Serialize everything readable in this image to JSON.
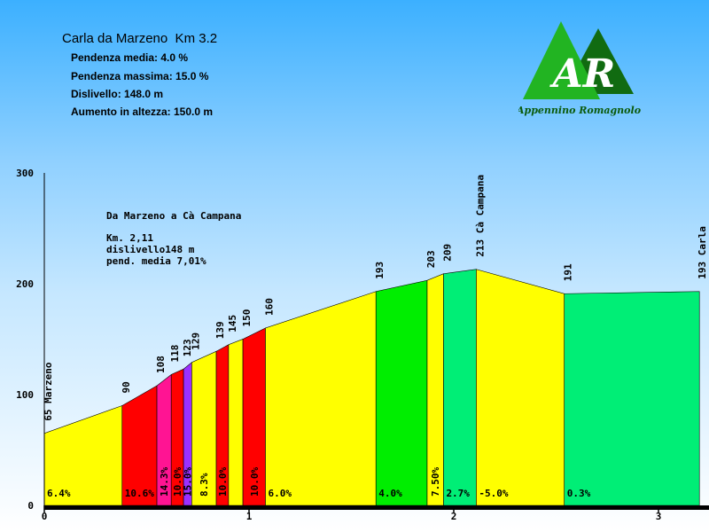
{
  "header": {
    "title": "Carla da Marzeno  Km 3.2",
    "stats": [
      "Pendenza media: 4.0 %",
      "Pendenza massima: 15.0 %",
      "Dislivello: 148.0 m",
      "Aumento in altezza: 150.0 m"
    ]
  },
  "logo": {
    "letters": "AR",
    "caption": "Appennino Romagnolo"
  },
  "note": {
    "title": "Da Marzeno a Cà Campana",
    "lines": [
      "Km. 2,11",
      "dislivello148 m",
      "pend. media 7,01%"
    ]
  },
  "chart_data": {
    "type": "area",
    "title": "Carla da Marzeno  Km 3.2",
    "xlabel": "",
    "ylabel": "",
    "xlim": [
      0,
      3.26
    ],
    "ylim": [
      0,
      300
    ],
    "x_ticks": [
      0,
      1,
      2,
      3
    ],
    "y_ticks": [
      0,
      100,
      200,
      300
    ],
    "grid": false,
    "points": [
      {
        "x": 0.0,
        "y": 65,
        "label": "65 Marzeno"
      },
      {
        "x": 0.38,
        "y": 90,
        "label": "90"
      },
      {
        "x": 0.55,
        "y": 108,
        "label": "108"
      },
      {
        "x": 0.62,
        "y": 118,
        "label": "118"
      },
      {
        "x": 0.68,
        "y": 123,
        "label": "123"
      },
      {
        "x": 0.72,
        "y": 129,
        "label": "129"
      },
      {
        "x": 0.84,
        "y": 139,
        "label": "139"
      },
      {
        "x": 0.9,
        "y": 145,
        "label": "145"
      },
      {
        "x": 0.97,
        "y": 150,
        "label": "150"
      },
      {
        "x": 1.08,
        "y": 160,
        "label": "160"
      },
      {
        "x": 1.62,
        "y": 193,
        "label": "193"
      },
      {
        "x": 1.87,
        "y": 203,
        "label": "203"
      },
      {
        "x": 1.95,
        "y": 209,
        "label": "209"
      },
      {
        "x": 2.11,
        "y": 213,
        "label": "213 Cà Campana"
      },
      {
        "x": 2.54,
        "y": 191,
        "label": "191"
      },
      {
        "x": 3.2,
        "y": 193,
        "label": "193 Carla"
      }
    ],
    "segments": [
      {
        "grade": "6.4%",
        "color": "#ffff00"
      },
      {
        "grade": "10.6%",
        "color": "#ff0000"
      },
      {
        "grade": "14.3%",
        "color": "#ff1493"
      },
      {
        "grade": "10.0%",
        "color": "#ff0000"
      },
      {
        "grade": "15.0%",
        "color": "#9b30ff"
      },
      {
        "grade": "8.3%",
        "color": "#ffff00"
      },
      {
        "grade": "10.0%",
        "color": "#ff0000"
      },
      {
        "grade": "",
        "color": "#ffff00"
      },
      {
        "grade": "10.0%",
        "color": "#ff0000"
      },
      {
        "grade": "6.0%",
        "color": "#ffff00"
      },
      {
        "grade": "4.0%",
        "color": "#00ee00"
      },
      {
        "grade": "7.50%",
        "color": "#ffff00"
      },
      {
        "grade": "2.7%",
        "color": "#00ee76"
      },
      {
        "grade": "-5.0%",
        "color": "#ffff00"
      },
      {
        "grade": "0.3%",
        "color": "#00ee76"
      }
    ]
  }
}
